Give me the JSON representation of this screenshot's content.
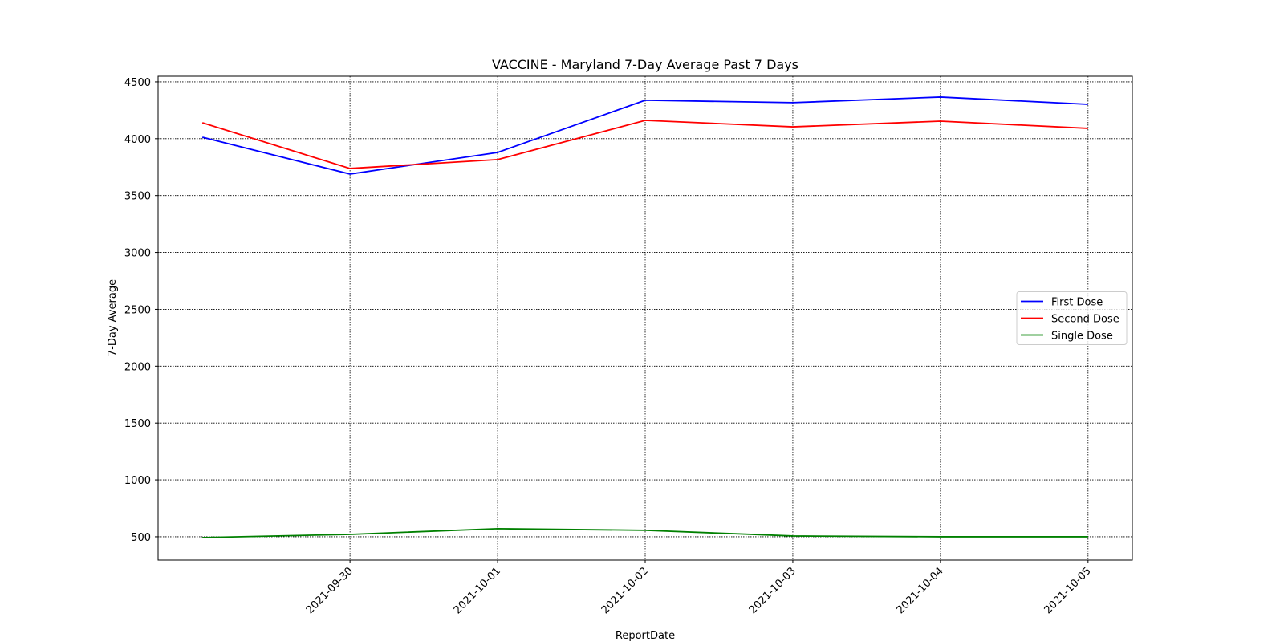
{
  "chart_data": {
    "type": "line",
    "title": "VACCINE - Maryland 7-Day Average Past 7 Days",
    "x_label": "ReportDate",
    "y_label": "7-Day Average",
    "x": [
      "2021-09-29",
      "2021-09-30",
      "2021-10-01",
      "2021-10-02",
      "2021-10-03",
      "2021-10-04",
      "2021-10-05"
    ],
    "series": [
      {
        "name": "First Dose",
        "color": "#0000ff",
        "values": [
          4013,
          3689,
          3879,
          4338,
          4317,
          4366,
          4302
        ]
      },
      {
        "name": "Second Dose",
        "color": "#ff0000",
        "values": [
          4140,
          3738,
          3816,
          4161,
          4104,
          4154,
          4091
        ]
      },
      {
        "name": "Single Dose",
        "color": "#008000",
        "values": [
          493,
          521,
          571,
          557,
          507,
          500,
          500
        ]
      }
    ],
    "xticks": [
      "2021-09-30",
      "2021-10-01",
      "2021-10-02",
      "2021-10-03",
      "2021-10-04",
      "2021-10-05"
    ],
    "ylim": [
      295,
      4549
    ],
    "yticks": [
      500,
      1000,
      1500,
      2000,
      2500,
      3000,
      3500,
      4000,
      4500
    ],
    "grid": true,
    "legend": "center right"
  }
}
